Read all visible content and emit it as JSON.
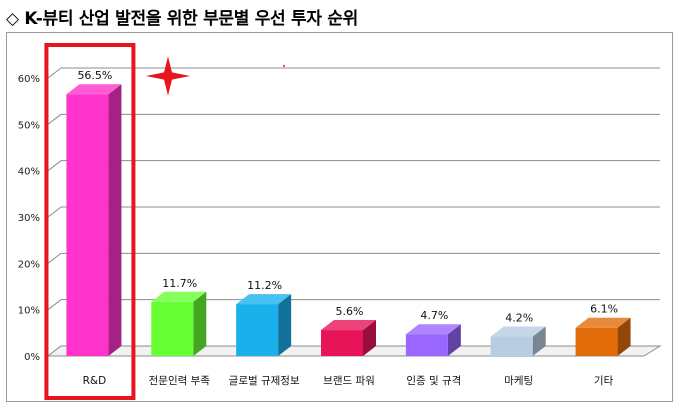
{
  "title": "◇ K-뷰티 산업 발전을 위한 부문별 우선 투자 순위",
  "chart_data": {
    "type": "bar",
    "categories": [
      "R&D",
      "전문인력 부족",
      "글로벌 규제정보",
      "브랜드 파워",
      "인증 및 규격",
      "마케팅",
      "기타"
    ],
    "values": [
      56.5,
      11.7,
      11.2,
      5.6,
      4.7,
      4.2,
      6.1
    ],
    "value_labels": [
      "56.5%",
      "11.7%",
      "11.2%",
      "5.6%",
      "4.7%",
      "4.2%",
      "6.1%"
    ],
    "y_ticks": [
      "0%",
      "10%",
      "20%",
      "30%",
      "40%",
      "50%",
      "60%"
    ],
    "ylim": [
      0,
      60
    ],
    "bar_colors": [
      "#ff33cc",
      "#66ff33",
      "#1ab0ec",
      "#e8145a",
      "#9966ff",
      "#b8cce4",
      "#e36c0a"
    ],
    "highlight": {
      "category": "R&D",
      "border_color": "#e8141e",
      "star_color": "#e8141e"
    },
    "grid": true
  }
}
